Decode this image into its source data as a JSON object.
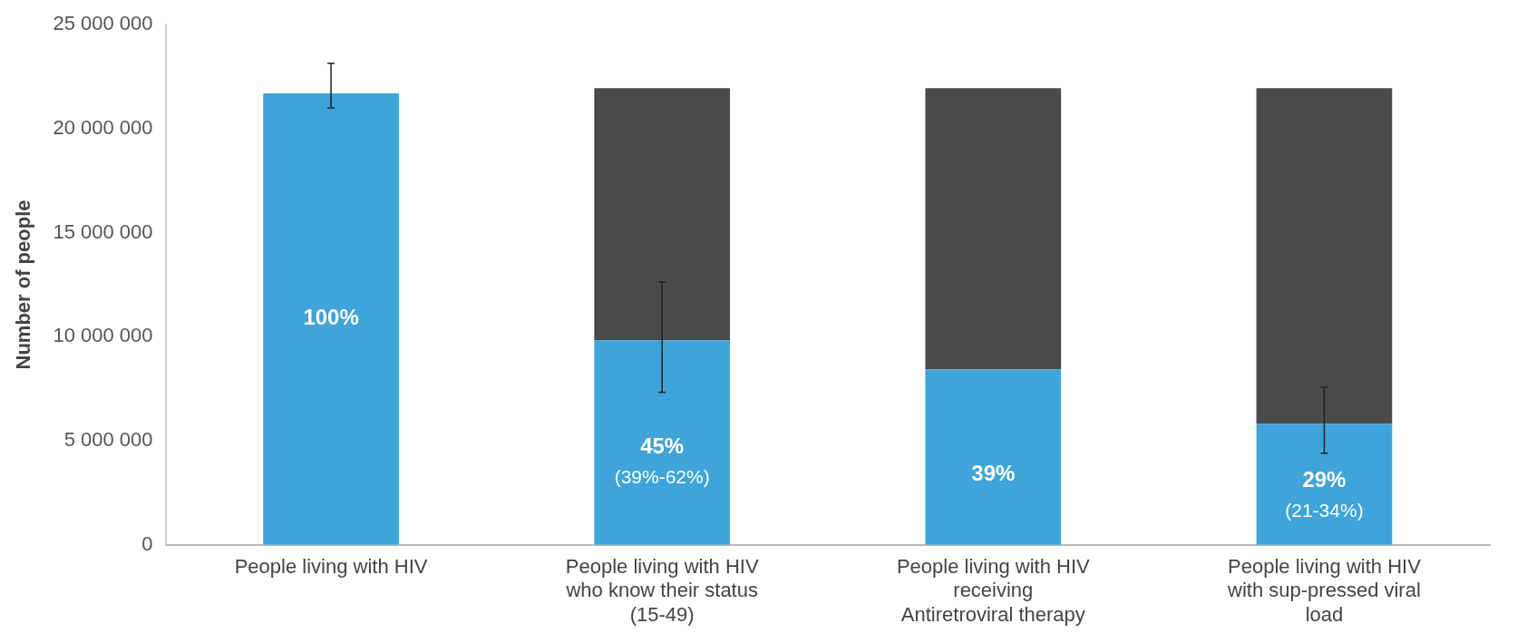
{
  "chart_data": {
    "type": "bar",
    "stacked": true,
    "ylabel": "Number of people",
    "categories": [
      "People living with HIV",
      "People living with HIV who know their status (15-49)",
      "People living with HIV receiving Antiretroviral therapy",
      "People living with HIV with sup-pressed viral load"
    ],
    "series": [
      {
        "color": "#3ea4d9",
        "values": [
          21700000,
          9830000,
          8430000,
          5820000
        ],
        "errors": [
          [
            21000000,
            23150000
          ],
          [
            7330000,
            12640000
          ],
          null,
          [
            4400000,
            7580000
          ]
        ]
      },
      {
        "color": "#4a4a4a",
        "values": [
          null,
          12120000,
          13520000,
          16130000
        ]
      }
    ],
    "ylim": [
      0,
      25000000
    ],
    "yticks": [
      {
        "value": 0,
        "label": "0"
      },
      {
        "value": 5000000,
        "label": "5 000 000"
      },
      {
        "value": 10000000,
        "label": "10 000 000"
      },
      {
        "value": 15000000,
        "label": "15 000 000"
      },
      {
        "value": 20000000,
        "label": "20 000 000"
      },
      {
        "value": 25000000,
        "label": "25 000 000"
      }
    ],
    "annotations": [
      "100%",
      "45%\n(39%-62%)",
      "39%",
      "29%\n(21-34%)"
    ],
    "grid": false,
    "legend": false
  }
}
